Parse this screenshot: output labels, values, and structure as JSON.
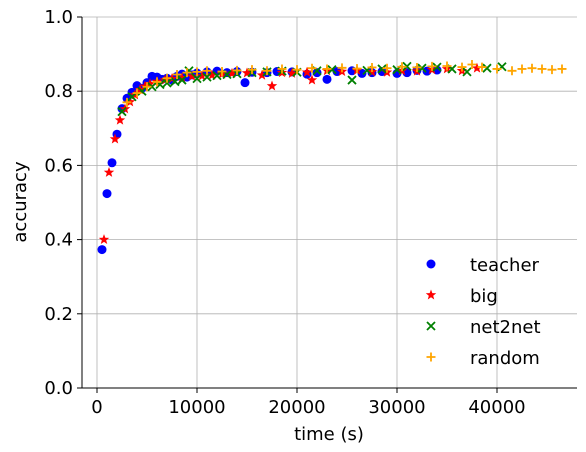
{
  "chart_data": {
    "type": "scatter",
    "title": "",
    "xlabel": "time (s)",
    "ylabel": "accuracy",
    "xlim": [
      -1500,
      48000
    ],
    "ylim": [
      0.0,
      1.0
    ],
    "xticks": [
      0,
      10000,
      20000,
      30000,
      40000
    ],
    "xtick_labels": [
      "0",
      "10000",
      "20000",
      "30000",
      "40000"
    ],
    "yticks": [
      0.0,
      0.2,
      0.4,
      0.6,
      0.8,
      1.0
    ],
    "ytick_labels": [
      "0.0",
      "0.2",
      "0.4",
      "0.6",
      "0.8",
      "1.0"
    ],
    "grid": true,
    "legend_position": "lower-right",
    "series": [
      {
        "name": "teacher",
        "marker": "circle",
        "color": "#0000ff",
        "points": [
          [
            500,
            0.373
          ],
          [
            1000,
            0.524
          ],
          [
            1500,
            0.607
          ],
          [
            2000,
            0.684
          ],
          [
            2500,
            0.753
          ],
          [
            3000,
            0.781
          ],
          [
            3500,
            0.797
          ],
          [
            4000,
            0.815
          ],
          [
            4500,
            0.808
          ],
          [
            5000,
            0.823
          ],
          [
            5500,
            0.84
          ],
          [
            6000,
            0.838
          ],
          [
            6500,
            0.832
          ],
          [
            7000,
            0.835
          ],
          [
            7500,
            0.83
          ],
          [
            8000,
            0.84
          ],
          [
            8500,
            0.846
          ],
          [
            9000,
            0.838
          ],
          [
            9500,
            0.844
          ],
          [
            10000,
            0.849
          ],
          [
            11000,
            0.852
          ],
          [
            12000,
            0.854
          ],
          [
            13000,
            0.85
          ],
          [
            14000,
            0.853
          ],
          [
            14800,
            0.823
          ],
          [
            15500,
            0.851
          ],
          [
            17000,
            0.85
          ],
          [
            18000,
            0.853
          ],
          [
            19500,
            0.852
          ],
          [
            21000,
            0.846
          ],
          [
            22000,
            0.85
          ],
          [
            23000,
            0.832
          ],
          [
            24000,
            0.853
          ],
          [
            25500,
            0.855
          ],
          [
            26500,
            0.848
          ],
          [
            27500,
            0.85
          ],
          [
            28500,
            0.853
          ],
          [
            30000,
            0.848
          ],
          [
            31000,
            0.85
          ],
          [
            32000,
            0.856
          ],
          [
            33000,
            0.854
          ],
          [
            34000,
            0.857
          ]
        ]
      },
      {
        "name": "big",
        "marker": "star",
        "color": "#ff0000",
        "points": [
          [
            700,
            0.4
          ],
          [
            1200,
            0.581
          ],
          [
            1800,
            0.671
          ],
          [
            2300,
            0.722
          ],
          [
            2800,
            0.752
          ],
          [
            3300,
            0.771
          ],
          [
            3800,
            0.79
          ],
          [
            4300,
            0.804
          ],
          [
            4800,
            0.813
          ],
          [
            5300,
            0.82
          ],
          [
            6000,
            0.826
          ],
          [
            6800,
            0.83
          ],
          [
            7500,
            0.834
          ],
          [
            8500,
            0.836
          ],
          [
            9500,
            0.84
          ],
          [
            10500,
            0.841
          ],
          [
            11500,
            0.843
          ],
          [
            12500,
            0.846
          ],
          [
            13500,
            0.848
          ],
          [
            15000,
            0.849
          ],
          [
            16500,
            0.843
          ],
          [
            17500,
            0.814
          ],
          [
            18500,
            0.85
          ],
          [
            19500,
            0.848
          ],
          [
            21000,
            0.851
          ],
          [
            21500,
            0.83
          ],
          [
            23000,
            0.855
          ],
          [
            24500,
            0.853
          ],
          [
            26000,
            0.856
          ],
          [
            27500,
            0.852
          ],
          [
            29000,
            0.851
          ],
          [
            30500,
            0.855
          ],
          [
            32000,
            0.854
          ],
          [
            33500,
            0.858
          ],
          [
            35000,
            0.86
          ],
          [
            36500,
            0.855
          ],
          [
            38000,
            0.862
          ]
        ]
      },
      {
        "name": "net2net",
        "marker": "x",
        "color": "#008000",
        "points": [
          [
            2500,
            0.745
          ],
          [
            3500,
            0.785
          ],
          [
            4500,
            0.8
          ],
          [
            5500,
            0.812
          ],
          [
            6300,
            0.818
          ],
          [
            7000,
            0.822
          ],
          [
            7800,
            0.826
          ],
          [
            8500,
            0.83
          ],
          [
            9200,
            0.855
          ],
          [
            10000,
            0.834
          ],
          [
            11000,
            0.838
          ],
          [
            12000,
            0.842
          ],
          [
            13000,
            0.845
          ],
          [
            14000,
            0.847
          ],
          [
            15500,
            0.85
          ],
          [
            17000,
            0.852
          ],
          [
            18500,
            0.854
          ],
          [
            20000,
            0.851
          ],
          [
            22000,
            0.855
          ],
          [
            23500,
            0.858
          ],
          [
            25500,
            0.83
          ],
          [
            27000,
            0.856
          ],
          [
            28500,
            0.86
          ],
          [
            30000,
            0.858
          ],
          [
            31000,
            0.867
          ],
          [
            32500,
            0.862
          ],
          [
            34000,
            0.865
          ],
          [
            35500,
            0.86
          ],
          [
            37000,
            0.852
          ],
          [
            39000,
            0.862
          ],
          [
            40500,
            0.866
          ]
        ]
      },
      {
        "name": "random",
        "marker": "plus",
        "color": "#ffa500",
        "points": [
          [
            3000,
            0.77
          ],
          [
            4000,
            0.795
          ],
          [
            5000,
            0.812
          ],
          [
            6000,
            0.825
          ],
          [
            7000,
            0.835
          ],
          [
            8000,
            0.845
          ],
          [
            9000,
            0.85
          ],
          [
            10000,
            0.852
          ],
          [
            11000,
            0.855
          ],
          [
            12500,
            0.853
          ],
          [
            14000,
            0.856
          ],
          [
            15500,
            0.858
          ],
          [
            17000,
            0.855
          ],
          [
            18500,
            0.86
          ],
          [
            20000,
            0.858
          ],
          [
            21500,
            0.862
          ],
          [
            23000,
            0.86
          ],
          [
            24500,
            0.863
          ],
          [
            26000,
            0.861
          ],
          [
            27500,
            0.864
          ],
          [
            29000,
            0.862
          ],
          [
            30500,
            0.866
          ],
          [
            32000,
            0.864
          ],
          [
            33500,
            0.867
          ],
          [
            35000,
            0.868
          ],
          [
            36500,
            0.865
          ],
          [
            37500,
            0.872
          ],
          [
            38500,
            0.865
          ],
          [
            40000,
            0.86
          ],
          [
            41500,
            0.855
          ],
          [
            42500,
            0.86
          ],
          [
            43500,
            0.862
          ],
          [
            44500,
            0.86
          ],
          [
            45500,
            0.858
          ],
          [
            46500,
            0.86
          ]
        ]
      }
    ]
  }
}
